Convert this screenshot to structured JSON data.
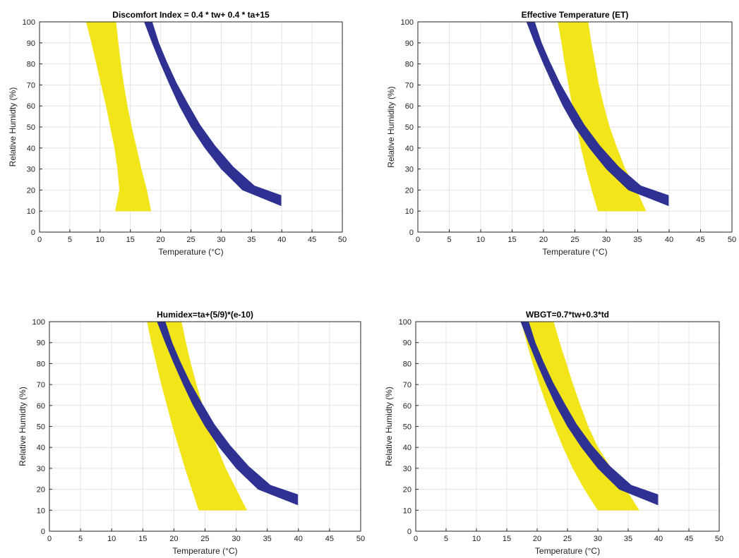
{
  "chart_data": [
    {
      "type": "area",
      "title": "Discomfort Index = 0.4 * tw+ 0.4 * ta+15",
      "xlabel": "Temperature (°C)",
      "ylabel": "Relative Humidty (%)",
      "xlim": [
        0,
        50
      ],
      "ylim": [
        0,
        100
      ],
      "xticks": [
        0,
        5,
        10,
        15,
        20,
        25,
        30,
        35,
        40,
        45,
        50
      ],
      "yticks": [
        0,
        10,
        20,
        30,
        40,
        50,
        60,
        70,
        80,
        90,
        100
      ],
      "grid": true,
      "series": [
        {
          "color": "#f2e51a",
          "band": [
            [
              7.7,
              100
            ],
            [
              8.6,
              90
            ],
            [
              9.4,
              80
            ],
            [
              10.2,
              70
            ],
            [
              11.0,
              60
            ],
            [
              11.7,
              50
            ],
            [
              12.4,
              40
            ],
            [
              12.9,
              30
            ],
            [
              13.2,
              20
            ],
            [
              12.5,
              10
            ],
            [
              18.4,
              10
            ],
            [
              17.7,
              20
            ],
            [
              16.8,
              30
            ],
            [
              16.0,
              40
            ],
            [
              15.2,
              50
            ],
            [
              14.5,
              60
            ],
            [
              13.9,
              70
            ],
            [
              13.4,
              80
            ],
            [
              13.0,
              90
            ],
            [
              12.6,
              100
            ]
          ]
        },
        {
          "color": "#2e3192",
          "band": [
            [
              17.3,
              100
            ],
            [
              18.6,
              90
            ],
            [
              20.0,
              80
            ],
            [
              21.5,
              70
            ],
            [
              23.1,
              60
            ],
            [
              25.0,
              50
            ],
            [
              27.3,
              40
            ],
            [
              30.0,
              30
            ],
            [
              33.5,
              20
            ],
            [
              39.9,
              12.5
            ],
            [
              39.9,
              17.5
            ],
            [
              35.5,
              22
            ],
            [
              32.0,
              31
            ],
            [
              29.0,
              41
            ],
            [
              26.5,
              51
            ],
            [
              24.5,
              61
            ],
            [
              22.6,
              71
            ],
            [
              21.0,
              81
            ],
            [
              19.7,
              90
            ],
            [
              18.6,
              100
            ]
          ]
        }
      ]
    },
    {
      "type": "area",
      "title": "Effective Temperature (ET)",
      "xlabel": "Temperature (°C)",
      "ylabel": "Relative Humidity (%)",
      "xlim": [
        0,
        50
      ],
      "ylim": [
        0,
        100
      ],
      "xticks": [
        0,
        5,
        10,
        15,
        20,
        25,
        30,
        35,
        40,
        45,
        50
      ],
      "yticks": [
        0,
        10,
        20,
        30,
        40,
        50,
        60,
        70,
        80,
        90,
        100
      ],
      "grid": true,
      "series": [
        {
          "color": "#f2e51a",
          "band": [
            [
              22.3,
              100
            ],
            [
              22.9,
              90
            ],
            [
              23.4,
              80
            ],
            [
              24.0,
              70
            ],
            [
              24.6,
              60
            ],
            [
              25.3,
              50
            ],
            [
              26.0,
              40
            ],
            [
              26.8,
              30
            ],
            [
              27.7,
              20
            ],
            [
              28.7,
              10
            ],
            [
              36.3,
              10
            ],
            [
              34.8,
              20
            ],
            [
              33.0,
              30
            ],
            [
              31.7,
              40
            ],
            [
              30.5,
              50
            ],
            [
              29.6,
              60
            ],
            [
              28.8,
              70
            ],
            [
              28.2,
              80
            ],
            [
              27.6,
              90
            ],
            [
              27.1,
              100
            ]
          ]
        },
        {
          "color": "#2e3192",
          "band": [
            [
              17.3,
              100
            ],
            [
              18.6,
              90
            ],
            [
              20.0,
              80
            ],
            [
              21.5,
              70
            ],
            [
              23.1,
              60
            ],
            [
              25.0,
              50
            ],
            [
              27.3,
              40
            ],
            [
              30.0,
              30
            ],
            [
              33.5,
              20
            ],
            [
              39.9,
              12.5
            ],
            [
              39.9,
              17.5
            ],
            [
              35.5,
              22
            ],
            [
              32.0,
              31
            ],
            [
              29.0,
              41
            ],
            [
              26.5,
              51
            ],
            [
              24.5,
              61
            ],
            [
              22.6,
              71
            ],
            [
              21.0,
              81
            ],
            [
              19.7,
              90
            ],
            [
              18.6,
              100
            ]
          ]
        }
      ]
    },
    {
      "type": "area",
      "title": "Humidex=ta+(5/9)*(e-10)",
      "xlabel": "Temperature (°C)",
      "ylabel": "Relative Humidty (%)",
      "xlim": [
        0,
        50
      ],
      "ylim": [
        0,
        100
      ],
      "xticks": [
        0,
        5,
        10,
        15,
        20,
        25,
        30,
        35,
        40,
        45,
        50
      ],
      "yticks": [
        0,
        10,
        20,
        30,
        40,
        50,
        60,
        70,
        80,
        90,
        100
      ],
      "grid": true,
      "series": [
        {
          "color": "#f2e51a",
          "band": [
            [
              15.7,
              100
            ],
            [
              16.4,
              90
            ],
            [
              17.2,
              80
            ],
            [
              18.0,
              70
            ],
            [
              18.9,
              60
            ],
            [
              19.8,
              50
            ],
            [
              20.8,
              40
            ],
            [
              21.8,
              30
            ],
            [
              22.9,
              20
            ],
            [
              24.0,
              10
            ],
            [
              31.7,
              10
            ],
            [
              30.0,
              20
            ],
            [
              28.3,
              30
            ],
            [
              26.9,
              40
            ],
            [
              25.7,
              50
            ],
            [
              24.6,
              60
            ],
            [
              23.6,
              70
            ],
            [
              22.7,
              80
            ],
            [
              21.9,
              90
            ],
            [
              21.2,
              100
            ]
          ]
        },
        {
          "color": "#2e3192",
          "band": [
            [
              17.3,
              100
            ],
            [
              18.6,
              90
            ],
            [
              20.0,
              80
            ],
            [
              21.5,
              70
            ],
            [
              23.1,
              60
            ],
            [
              25.0,
              50
            ],
            [
              27.3,
              40
            ],
            [
              30.0,
              30
            ],
            [
              33.5,
              20
            ],
            [
              39.9,
              12.5
            ],
            [
              39.9,
              17.5
            ],
            [
              35.5,
              22
            ],
            [
              32.0,
              31
            ],
            [
              29.0,
              41
            ],
            [
              26.5,
              51
            ],
            [
              24.5,
              61
            ],
            [
              22.6,
              71
            ],
            [
              21.0,
              81
            ],
            [
              19.7,
              90
            ],
            [
              18.6,
              100
            ]
          ]
        }
      ]
    },
    {
      "type": "area",
      "title": "WBGT=0.7*tw+0.3*td",
      "xlabel": "Temperature (°C)",
      "ylabel": "Relative Humidty (%)",
      "xlim": [
        0,
        50
      ],
      "ylim": [
        0,
        100
      ],
      "xticks": [
        0,
        5,
        10,
        15,
        20,
        25,
        30,
        35,
        40,
        45,
        50
      ],
      "yticks": [
        0,
        10,
        20,
        30,
        40,
        50,
        60,
        70,
        80,
        90,
        100
      ],
      "grid": true,
      "series": [
        {
          "color": "#f2e51a",
          "band": [
            [
              17.4,
              100
            ],
            [
              18.3,
              90
            ],
            [
              19.3,
              80
            ],
            [
              20.4,
              70
            ],
            [
              21.6,
              60
            ],
            [
              22.9,
              50
            ],
            [
              24.3,
              40
            ],
            [
              25.9,
              30
            ],
            [
              27.8,
              20
            ],
            [
              30.0,
              10
            ],
            [
              36.8,
              10
            ],
            [
              34.6,
              20
            ],
            [
              32.2,
              30
            ],
            [
              30.0,
              40
            ],
            [
              28.4,
              50
            ],
            [
              27.1,
              60
            ],
            [
              25.9,
              70
            ],
            [
              24.8,
              80
            ],
            [
              23.7,
              90
            ],
            [
              22.7,
              100
            ]
          ]
        },
        {
          "color": "#2e3192",
          "band": [
            [
              17.3,
              100
            ],
            [
              18.6,
              90
            ],
            [
              20.0,
              80
            ],
            [
              21.5,
              70
            ],
            [
              23.1,
              60
            ],
            [
              25.0,
              50
            ],
            [
              27.3,
              40
            ],
            [
              30.0,
              30
            ],
            [
              33.5,
              20
            ],
            [
              39.9,
              12.5
            ],
            [
              39.9,
              17.5
            ],
            [
              35.5,
              22
            ],
            [
              32.0,
              31
            ],
            [
              29.0,
              41
            ],
            [
              26.5,
              51
            ],
            [
              24.5,
              61
            ],
            [
              22.6,
              71
            ],
            [
              21.0,
              81
            ],
            [
              19.7,
              90
            ],
            [
              18.6,
              100
            ]
          ]
        }
      ]
    }
  ]
}
